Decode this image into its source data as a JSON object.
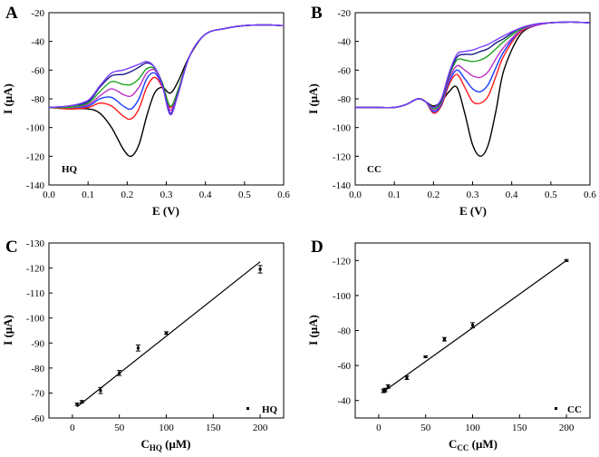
{
  "figure": {
    "colors": {
      "black": "#000000",
      "red": "#ff1a1a",
      "blue": "#1a3cff",
      "magenta": "#c030c8",
      "green": "#1fa31f",
      "navy": "#1a1a8c",
      "violet": "#7a3cff"
    }
  },
  "chart_data": [
    {
      "panel": "A",
      "type": "line",
      "legend_text": "HQ",
      "xlabel": "E (V)",
      "ylabel": "I (μA)",
      "xlim": [
        0.0,
        0.6
      ],
      "ylim": [
        -140,
        -20
      ],
      "inverted_y": true,
      "xticks": [
        0.0,
        0.1,
        0.2,
        0.3,
        0.4,
        0.5,
        0.6
      ],
      "xtick_labels": [
        "0.0",
        "0.1",
        "0.2",
        "0.3",
        "0.4",
        "0.5",
        "0.6"
      ],
      "yticks": [
        -20,
        -40,
        -60,
        -80,
        -100,
        -120,
        -140
      ],
      "ytick_labels": [
        "-20",
        "-40",
        "-60",
        "-80",
        "-100",
        "-120",
        "-140"
      ],
      "series": [
        {
          "name": "curve-1",
          "color": "#000000",
          "x": [
            0.0,
            0.05,
            0.1,
            0.13,
            0.16,
            0.19,
            0.21,
            0.23,
            0.25,
            0.27,
            0.29,
            0.31,
            0.33,
            0.36,
            0.4,
            0.45,
            0.5,
            0.55,
            0.6
          ],
          "y": [
            -86,
            -87,
            -87,
            -90,
            -100,
            -115,
            -120,
            -112,
            -92,
            -76,
            -72,
            -76,
            -68,
            -50,
            -35,
            -31,
            -29,
            -28.5,
            -29
          ]
        },
        {
          "name": "curve-2",
          "color": "#ff1a1a",
          "x": [
            0.0,
            0.05,
            0.1,
            0.13,
            0.16,
            0.19,
            0.21,
            0.23,
            0.25,
            0.27,
            0.29,
            0.31,
            0.33,
            0.36,
            0.4,
            0.45,
            0.5,
            0.55,
            0.6
          ],
          "y": [
            -86,
            -87,
            -86,
            -83,
            -85,
            -92,
            -94,
            -87,
            -72,
            -65,
            -72,
            -86,
            -74,
            -50,
            -35,
            -31,
            -29,
            -28.5,
            -29
          ]
        },
        {
          "name": "curve-3",
          "color": "#1a3cff",
          "x": [
            0.0,
            0.05,
            0.1,
            0.13,
            0.16,
            0.19,
            0.21,
            0.23,
            0.25,
            0.27,
            0.29,
            0.31,
            0.33,
            0.36,
            0.4,
            0.45,
            0.5,
            0.55,
            0.6
          ],
          "y": [
            -86,
            -86,
            -85,
            -80,
            -79,
            -85,
            -87,
            -80,
            -66,
            -62,
            -71,
            -88,
            -75,
            -50,
            -35,
            -31,
            -29,
            -28.5,
            -29
          ]
        },
        {
          "name": "curve-4",
          "color": "#c030c8",
          "x": [
            0.0,
            0.05,
            0.1,
            0.13,
            0.16,
            0.19,
            0.21,
            0.23,
            0.25,
            0.27,
            0.29,
            0.31,
            0.33,
            0.36,
            0.4,
            0.45,
            0.5,
            0.55,
            0.6
          ],
          "y": [
            -86,
            -86,
            -84,
            -78,
            -73,
            -77,
            -78,
            -72,
            -62,
            -60,
            -70,
            -88,
            -75,
            -50,
            -35,
            -31,
            -29,
            -28.5,
            -29
          ]
        },
        {
          "name": "curve-5",
          "color": "#1fa31f",
          "x": [
            0.0,
            0.05,
            0.1,
            0.13,
            0.16,
            0.19,
            0.21,
            0.23,
            0.25,
            0.27,
            0.29,
            0.31,
            0.33,
            0.36,
            0.4,
            0.45,
            0.5,
            0.55,
            0.6
          ],
          "y": [
            -86,
            -86,
            -83,
            -75,
            -68,
            -70,
            -70,
            -66,
            -59,
            -59,
            -69,
            -85,
            -74,
            -50,
            -35,
            -31,
            -29,
            -28.5,
            -29
          ]
        },
        {
          "name": "curve-6",
          "color": "#1a1a8c",
          "x": [
            0.0,
            0.05,
            0.1,
            0.13,
            0.16,
            0.19,
            0.21,
            0.23,
            0.25,
            0.27,
            0.29,
            0.31,
            0.33,
            0.36,
            0.4,
            0.45,
            0.5,
            0.55,
            0.6
          ],
          "y": [
            -86,
            -85,
            -82,
            -72,
            -64,
            -63,
            -61,
            -58,
            -55,
            -58,
            -70,
            -90,
            -76,
            -50,
            -35,
            -31,
            -29,
            -28.5,
            -29
          ]
        },
        {
          "name": "curve-7",
          "color": "#7a3cff",
          "x": [
            0.0,
            0.05,
            0.1,
            0.13,
            0.16,
            0.19,
            0.21,
            0.23,
            0.25,
            0.27,
            0.29,
            0.31,
            0.33,
            0.36,
            0.4,
            0.45,
            0.5,
            0.55,
            0.6
          ],
          "y": [
            -86,
            -85,
            -81,
            -71,
            -62,
            -60,
            -58,
            -56,
            -54,
            -58,
            -71,
            -91,
            -77,
            -50,
            -35,
            -31,
            -29,
            -28.5,
            -29
          ]
        }
      ]
    },
    {
      "panel": "B",
      "type": "line",
      "legend_text": "CC",
      "xlabel": "E (V)",
      "ylabel": "I (μA)",
      "xlim": [
        0.0,
        0.6
      ],
      "ylim": [
        -140,
        -20
      ],
      "inverted_y": true,
      "xticks": [
        0.0,
        0.1,
        0.2,
        0.3,
        0.4,
        0.5,
        0.6
      ],
      "xtick_labels": [
        "0.0",
        "0.1",
        "0.2",
        "0.3",
        "0.4",
        "0.5",
        "0.6"
      ],
      "yticks": [
        -20,
        -40,
        -60,
        -80,
        -100,
        -120,
        -140
      ],
      "ytick_labels": [
        "-20",
        "-40",
        "-60",
        "-80",
        "-100",
        "-120",
        "-140"
      ],
      "series": [
        {
          "name": "curve-1",
          "color": "#000000",
          "x": [
            0.0,
            0.05,
            0.1,
            0.13,
            0.16,
            0.18,
            0.2,
            0.22,
            0.24,
            0.26,
            0.28,
            0.3,
            0.32,
            0.34,
            0.36,
            0.38,
            0.42,
            0.46,
            0.5,
            0.55,
            0.6
          ],
          "y": [
            -86,
            -86,
            -86,
            -84,
            -80,
            -82,
            -85,
            -82,
            -75,
            -72,
            -90,
            -112,
            -120,
            -112,
            -88,
            -60,
            -36,
            -29,
            -27,
            -26.5,
            -27
          ]
        },
        {
          "name": "curve-2",
          "color": "#ff1a1a",
          "x": [
            0.0,
            0.05,
            0.1,
            0.13,
            0.16,
            0.18,
            0.2,
            0.22,
            0.24,
            0.26,
            0.28,
            0.3,
            0.32,
            0.34,
            0.36,
            0.38,
            0.42,
            0.46,
            0.5,
            0.55,
            0.6
          ],
          "y": [
            -86,
            -86,
            -86,
            -84,
            -80,
            -82,
            -90,
            -85,
            -70,
            -63,
            -72,
            -82,
            -83,
            -78,
            -64,
            -50,
            -34,
            -29,
            -27,
            -26.5,
            -27
          ]
        },
        {
          "name": "curve-3",
          "color": "#1a3cff",
          "x": [
            0.0,
            0.05,
            0.1,
            0.13,
            0.16,
            0.18,
            0.2,
            0.22,
            0.24,
            0.26,
            0.28,
            0.3,
            0.32,
            0.34,
            0.36,
            0.38,
            0.42,
            0.46,
            0.5,
            0.55,
            0.6
          ],
          "y": [
            -86,
            -86,
            -86,
            -84,
            -80,
            -82,
            -89,
            -84,
            -68,
            -60,
            -66,
            -73,
            -75,
            -70,
            -58,
            -47,
            -33,
            -29,
            -27,
            -26.5,
            -27
          ]
        },
        {
          "name": "curve-4",
          "color": "#c030c8",
          "x": [
            0.0,
            0.05,
            0.1,
            0.13,
            0.16,
            0.18,
            0.2,
            0.22,
            0.24,
            0.26,
            0.28,
            0.3,
            0.32,
            0.34,
            0.36,
            0.38,
            0.42,
            0.46,
            0.5,
            0.55,
            0.6
          ],
          "y": [
            -86,
            -86,
            -86,
            -84,
            -80,
            -82,
            -88,
            -83,
            -66,
            -57,
            -60,
            -64,
            -65,
            -61,
            -52,
            -44,
            -33,
            -29,
            -27,
            -26.5,
            -27
          ]
        },
        {
          "name": "curve-5",
          "color": "#1fa31f",
          "x": [
            0.0,
            0.05,
            0.1,
            0.13,
            0.16,
            0.18,
            0.2,
            0.22,
            0.24,
            0.26,
            0.28,
            0.3,
            0.32,
            0.34,
            0.36,
            0.38,
            0.42,
            0.46,
            0.5,
            0.55,
            0.6
          ],
          "y": [
            -86,
            -86,
            -86,
            -84,
            -80,
            -82,
            -87,
            -82,
            -64,
            -53,
            -53,
            -54,
            -53,
            -50,
            -45,
            -40,
            -32,
            -28,
            -27,
            -26.5,
            -27
          ]
        },
        {
          "name": "curve-6",
          "color": "#1a1a8c",
          "x": [
            0.0,
            0.05,
            0.1,
            0.13,
            0.16,
            0.18,
            0.2,
            0.22,
            0.24,
            0.26,
            0.28,
            0.3,
            0.32,
            0.34,
            0.36,
            0.38,
            0.42,
            0.46,
            0.5,
            0.55,
            0.6
          ],
          "y": [
            -86,
            -86,
            -86,
            -84,
            -80,
            -82,
            -86,
            -81,
            -63,
            -51,
            -49,
            -49,
            -47,
            -45,
            -41,
            -38,
            -31,
            -28,
            -27,
            -26.5,
            -27
          ]
        },
        {
          "name": "curve-7",
          "color": "#7a3cff",
          "x": [
            0.0,
            0.05,
            0.1,
            0.13,
            0.16,
            0.18,
            0.2,
            0.22,
            0.24,
            0.26,
            0.28,
            0.3,
            0.32,
            0.34,
            0.36,
            0.38,
            0.42,
            0.46,
            0.5,
            0.55,
            0.6
          ],
          "y": [
            -86,
            -86,
            -86,
            -84,
            -80,
            -82,
            -86,
            -80,
            -62,
            -49,
            -47,
            -46,
            -44,
            -42,
            -39,
            -36,
            -31,
            -28,
            -27,
            -26.5,
            -27
          ]
        }
      ]
    },
    {
      "panel": "C",
      "type": "scatter",
      "legend_text": "HQ",
      "xlabel_main": "C",
      "xlabel_sub": "HQ",
      "xlabel_unit": " (μM)",
      "ylabel": "I (μA)",
      "xlim": [
        -25,
        225
      ],
      "ylim": [
        -60,
        -130
      ],
      "inverted_y": true,
      "xticks": [
        0,
        50,
        100,
        150,
        200
      ],
      "xtick_labels": [
        "0",
        "50",
        "100",
        "150",
        "200"
      ],
      "yticks": [
        -60,
        -70,
        -80,
        -90,
        -100,
        -110,
        -120,
        -130
      ],
      "ytick_labels": [
        "-60",
        "-70",
        "-80",
        "-90",
        "-100",
        "-110",
        "-120",
        "-130"
      ],
      "points": {
        "x": [
          5,
          10,
          30,
          50,
          70,
          100,
          200
        ],
        "y": [
          -65.5,
          -66.5,
          -71,
          -78,
          -88,
          -94,
          -119.5
        ],
        "err": [
          0.5,
          0.5,
          1.2,
          1,
          1.2,
          0.5,
          1.5
        ]
      },
      "fit_line": {
        "x": [
          5,
          200
        ],
        "y": [
          -64.5,
          -122.5
        ]
      }
    },
    {
      "panel": "D",
      "type": "scatter",
      "legend_text": "CC",
      "xlabel_main": "C",
      "xlabel_sub": "CC",
      "xlabel_unit": " (μM)",
      "ylabel": "I (μA)",
      "xlim": [
        -25,
        225
      ],
      "ylim": [
        -30,
        -130
      ],
      "inverted_y": true,
      "xticks": [
        0,
        50,
        100,
        150,
        200
      ],
      "xtick_labels": [
        "0",
        "50",
        "100",
        "150",
        "200"
      ],
      "yticks": [
        -40,
        -60,
        -80,
        -100,
        -120
      ],
      "ytick_labels": [
        "-40",
        "-60",
        "-80",
        "-100",
        "-120"
      ],
      "points": {
        "x": [
          5,
          7,
          10,
          30,
          50,
          70,
          100,
          200
        ],
        "y": [
          -45.5,
          -46,
          -48,
          -53,
          -65,
          -75,
          -83,
          -120
        ],
        "err": [
          1,
          1,
          1,
          1,
          0.5,
          1,
          1.5,
          0.5
        ]
      },
      "fit_line": {
        "x": [
          5,
          200
        ],
        "y": [
          -45,
          -120
        ]
      }
    }
  ]
}
